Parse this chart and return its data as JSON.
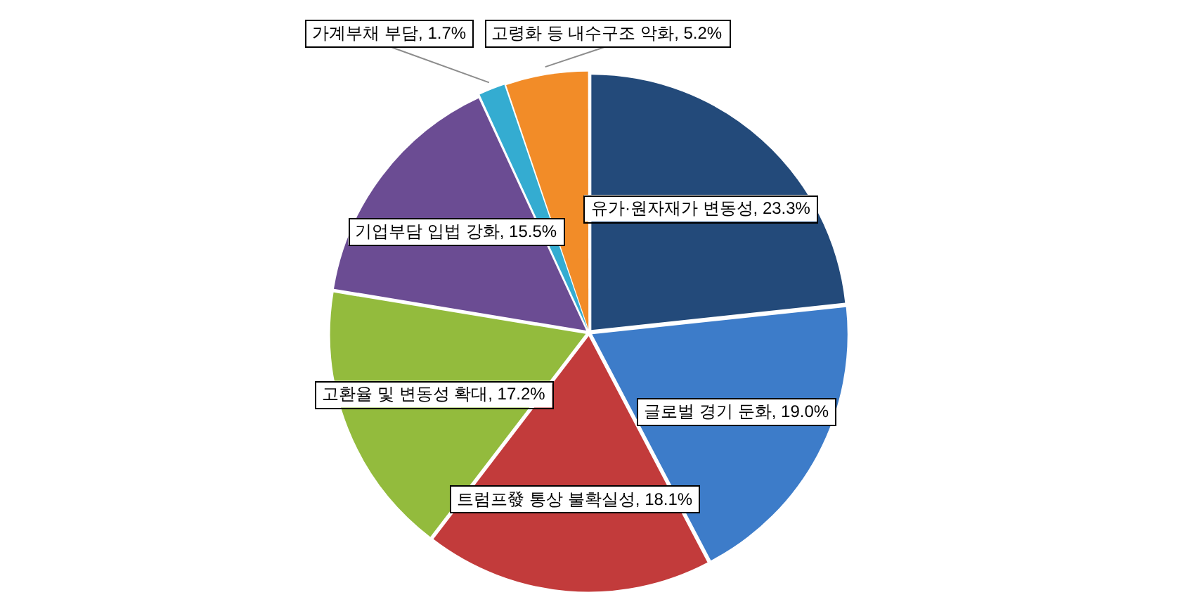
{
  "chart_data": {
    "type": "pie",
    "categories": [
      "유가·원자재가 변동성",
      "글로벌 경기 둔화",
      "트럼프發 통상 불확실성",
      "고환율 및 변동성 확대",
      "기업부담 입법 강화",
      "가계부채 부담",
      "고령화 등 내수구조 악화"
    ],
    "values": [
      23.3,
      19.0,
      18.1,
      17.2,
      15.5,
      1.7,
      5.2
    ],
    "colors": [
      "#234a7a",
      "#3d7cc9",
      "#c23b3b",
      "#93bb3d",
      "#6b4c93",
      "#34acd1",
      "#f28c28"
    ],
    "value_labels": [
      "23.3%",
      "19.0%",
      "18.1%",
      "17.2%",
      "15.5%",
      "1.7%",
      "5.2%"
    ],
    "legend": false
  }
}
